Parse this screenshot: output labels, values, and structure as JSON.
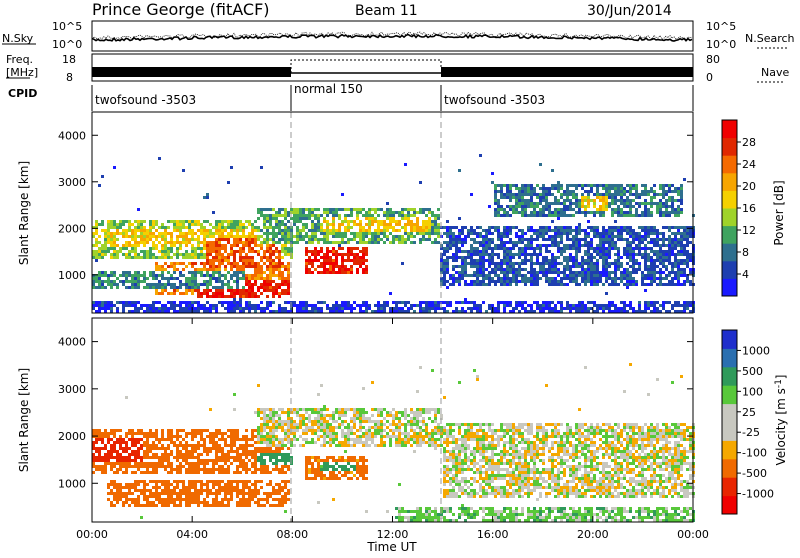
{
  "header": {
    "station": "Prince George (fitACF)",
    "beam": "Beam 11",
    "date": "30/Jun/2014"
  },
  "noise_panel": {
    "left_label": "N.Sky",
    "right_label": "N.Search",
    "left_ticks": [
      "10^5",
      "10^0"
    ],
    "right_ticks": [
      "10^5",
      "10^0"
    ]
  },
  "freq_panel": {
    "left_label_1": "Freq.",
    "left_label_2": "[MHz]",
    "right_label": "Nave",
    "left_ticks": [
      "18",
      "8"
    ],
    "right_ticks": [
      "80",
      "0"
    ]
  },
  "cpid_panel": {
    "label": "CPID",
    "segments": [
      {
        "start_hour": 0,
        "end_hour": 8,
        "name": "twofsound -3503"
      },
      {
        "start_hour": 8,
        "end_hour": 14,
        "name": "normal 150"
      },
      {
        "start_hour": 14,
        "end_hour": 24,
        "name": "twofsound -3503"
      }
    ]
  },
  "axes": {
    "ylabel": "Slant Range [km]",
    "xlabel": "Time UT",
    "y_ticks": [
      "1000",
      "2000",
      "3000",
      "4000"
    ],
    "x_ticks": [
      "00:00",
      "04:00",
      "08:00",
      "12:00",
      "16:00",
      "20:00",
      "00:00"
    ]
  },
  "power_colorbar": {
    "title": "Power [dB]",
    "labels": [
      "4",
      "8",
      "12",
      "16",
      "20",
      "24",
      "28"
    ],
    "colors": [
      "#1a1aff",
      "#1e3fb0",
      "#2e6f8e",
      "#3fa35f",
      "#9fd32a",
      "#f5d000",
      "#f7a500",
      "#f56a00",
      "#e02800",
      "#f00000"
    ]
  },
  "velocity_colorbar": {
    "title": "Velocity [m s^-1]",
    "labels": [
      "1000",
      "500",
      "100",
      "25",
      "-25",
      "-100",
      "-500",
      "-1000"
    ],
    "colors": [
      "#1f2fcc",
      "#2a6fb0",
      "#2f9a5a",
      "#58c83a",
      "#c8c8c0",
      "#c8c8c0",
      "#f5a800",
      "#f06a00",
      "#e82500",
      "#f00000"
    ]
  },
  "chart_data": {
    "type": "heatmap",
    "x_range_hours": [
      0,
      24
    ],
    "y_range_km": [
      180,
      4500
    ],
    "mode_change_hours": [
      8,
      14
    ],
    "power_regions_db": [
      {
        "t": [
          0.0,
          8.0
        ],
        "r": [
          1350,
          2200
        ],
        "db": 14
      },
      {
        "t": [
          0.5,
          7.8
        ],
        "r": [
          1600,
          2000
        ],
        "db": 18
      },
      {
        "t": [
          2.5,
          7.8
        ],
        "r": [
          600,
          1300
        ],
        "db": 22
      },
      {
        "t": [
          4.0,
          7.8
        ],
        "r": [
          550,
          900
        ],
        "db": 27
      },
      {
        "t": [
          4.5,
          7.5
        ],
        "r": [
          1200,
          1800
        ],
        "db": 24
      },
      {
        "t": [
          0.0,
          6.0
        ],
        "r": [
          700,
          1100
        ],
        "db": 10
      },
      {
        "t": [
          6.5,
          13.8
        ],
        "r": [
          1700,
          2500
        ],
        "db": 12
      },
      {
        "t": [
          8.5,
          11.0
        ],
        "r": [
          1050,
          1600
        ],
        "db": 27
      },
      {
        "t": [
          9.0,
          13.5
        ],
        "r": [
          1950,
          2300
        ],
        "db": 18
      },
      {
        "t": [
          13.8,
          24.0
        ],
        "r": [
          800,
          2100
        ],
        "db": 7
      },
      {
        "t": [
          16.0,
          23.5
        ],
        "r": [
          2300,
          3000
        ],
        "db": 9
      },
      {
        "t": [
          19.5,
          20.5
        ],
        "r": [
          2400,
          2700
        ],
        "db": 18
      },
      {
        "t": [
          0.0,
          24.0
        ],
        "r": [
          200,
          450
        ],
        "db": 5
      }
    ],
    "velocity_regions_mps": [
      {
        "t": [
          0.0,
          7.8
        ],
        "r": [
          1200,
          2200
        ],
        "v": -200
      },
      {
        "t": [
          0.5,
          7.8
        ],
        "r": [
          500,
          1100
        ],
        "v": -350
      },
      {
        "t": [
          0.0,
          2.0
        ],
        "r": [
          1500,
          2000
        ],
        "v": -900
      },
      {
        "t": [
          6.5,
          14.0
        ],
        "r": [
          1800,
          2600
        ],
        "v": 0
      },
      {
        "t": [
          8.5,
          11.0
        ],
        "r": [
          1100,
          1600
        ],
        "v": -150
      },
      {
        "t": [
          9.0,
          10.5
        ],
        "r": [
          1300,
          1500
        ],
        "v": 150
      },
      {
        "t": [
          14.0,
          24.0
        ],
        "r": [
          700,
          2300
        ],
        "v": 0
      },
      {
        "t": [
          12.0,
          24.0
        ],
        "r": [
          200,
          500
        ],
        "v": 60
      },
      {
        "t": [
          6.5,
          8.0
        ],
        "r": [
          1400,
          1700
        ],
        "v": 400
      }
    ]
  }
}
